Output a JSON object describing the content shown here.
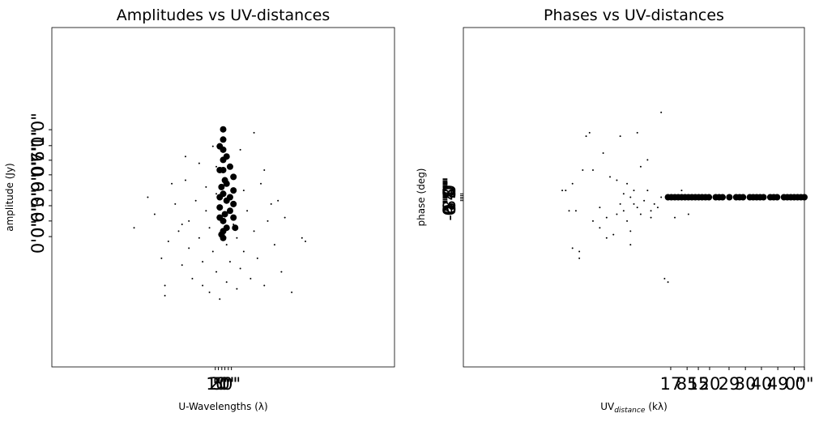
{
  "chart_data": [
    {
      "type": "scatter",
      "title": "Amplitudes vs UV-distances",
      "xlabel": "U-Wavelengths (λ)",
      "ylabel": "amplitude (Jy)",
      "xlim": [
        -50,
        50
      ],
      "ylim": [
        -50,
        50
      ],
      "xticks": [
        {
          "value": -2.3,
          "label": "1\""
        },
        {
          "value": -1.4,
          "label": "2\""
        },
        {
          "value": -0.4,
          "label": "5\""
        },
        {
          "value": 0.5,
          "label": "0\""
        },
        {
          "value": 1.5,
          "label": "0\""
        },
        {
          "value": 2.4,
          "label": "0\""
        }
      ],
      "yticks": [
        {
          "value": 19.9,
          "label": "1'0\""
        },
        {
          "value": 15.2,
          "label": "7'0\""
        },
        {
          "value": 10.9,
          "label": "0'6\""
        },
        {
          "value": 6.6,
          "label": "9'0\""
        },
        {
          "value": 2.0,
          "label": "3'0\""
        },
        {
          "value": -2.5,
          "label": "6'0\""
        },
        {
          "value": -7.0,
          "label": "0'0\""
        },
        {
          "value": -11.6,
          "label": "0'0\""
        }
      ],
      "series": [
        {
          "color": "#000000",
          "size": 1,
          "x": [
            -26,
            -22,
            -20,
            -18,
            -17,
            -17,
            -16,
            -15,
            -14,
            -13,
            -12,
            -11,
            -10,
            -10,
            -9,
            -8,
            -7,
            -7,
            -6,
            -5,
            -5,
            -4,
            -4,
            -3,
            -3,
            -2,
            -2,
            -1,
            -1,
            1,
            1,
            2,
            3,
            4,
            4,
            5,
            6,
            6,
            7,
            8,
            9,
            9,
            10,
            11,
            12,
            12,
            13,
            14,
            15,
            16,
            17,
            18,
            20,
            23,
            24,
            -11,
            -12,
            -6,
            5,
            -2
          ],
          "values": [
            -9,
            0,
            -5,
            -18,
            -26,
            -29,
            -13,
            4,
            -2,
            -10,
            -20,
            5,
            -15,
            -7,
            -24,
            -1,
            10,
            -12,
            -19,
            -4,
            3,
            -28,
            -9,
            15,
            -16,
            1,
            -22,
            -6,
            -30,
            -14,
            -25,
            -19,
            -8,
            -27,
            -12,
            -21,
            2,
            -16,
            -4,
            -24,
            19,
            -10,
            -18,
            4,
            8,
            -26,
            -7,
            -2,
            -14,
            -1,
            -22,
            -6,
            -28,
            -12,
            -13,
            12,
            -8,
            -26,
            14,
            9
          ]
        },
        {
          "color": "#000000",
          "size": 4,
          "x": [
            0,
            0,
            0,
            0,
            0,
            0.5,
            -0.5,
            0,
            1,
            -1,
            0.5,
            0,
            1,
            -0.5,
            3,
            3,
            3,
            3,
            2,
            -1,
            1,
            -1,
            2,
            -1,
            0,
            1,
            2,
            -1,
            3.5,
            0
          ],
          "values": [
            20,
            17,
            14,
            11,
            8,
            5,
            3,
            1,
            -1,
            -3,
            -5,
            -7,
            -9,
            -11,
            6,
            2,
            -2,
            -6,
            9,
            8,
            12,
            0,
            -4,
            -6,
            -12,
            4,
            0,
            15,
            -9,
            -10
          ]
        }
      ]
    },
    {
      "type": "scatter",
      "title": "Phases vs UV-distances",
      "xlabel": {
        "text": "UV",
        "sub": "distance",
        "unit": "(kλ)"
      },
      "ylabel": "phase (deg)",
      "xlim": [
        -50,
        50
      ],
      "ylim": [
        -50,
        50
      ],
      "xticks": [
        {
          "value": 10.8,
          "label": "17"
        },
        {
          "value": 15.6,
          "label": "85"
        },
        {
          "value": 18.9,
          "label": "15"
        },
        {
          "value": 22.2,
          "label": "20"
        },
        {
          "value": 27.9,
          "label": "29"
        },
        {
          "value": 32.7,
          "label": "30"
        },
        {
          "value": 37.4,
          "label": "40"
        },
        {
          "value": 42.2,
          "label": "49"
        },
        {
          "value": 47,
          "label": "0\""
        },
        {
          "value": 50,
          "label": "0\""
        }
      ],
      "yticks": [
        {
          "value": -1,
          "label": "-0'5\""
        },
        {
          "value": -0.5,
          "label": "0'4\""
        },
        {
          "value": 0,
          "label": "4'8\""
        },
        {
          "value": 0.5,
          "label": "5'0\""
        },
        {
          "value": 1,
          "label": "8'0\""
        }
      ],
      "series": [
        {
          "color": "#000000",
          "size": 1,
          "x": [
            -21,
            -20,
            -19,
            -18,
            -18,
            -16,
            -17,
            -15,
            -14,
            -13,
            -12,
            -12,
            -10,
            -10,
            -9,
            -8,
            -8,
            -7,
            -6,
            -5,
            -5,
            -4,
            -4,
            -3,
            -3,
            -2,
            -2,
            -1,
            -1,
            0,
            0,
            1,
            1,
            2,
            2,
            3,
            4,
            4,
            5,
            5,
            6,
            7,
            8,
            9,
            10,
            8,
            12,
            14,
            16,
            -16,
            -1
          ],
          "values": [
            2,
            2,
            -4,
            4,
            -15,
            -16,
            -4,
            8,
            18,
            19,
            -7,
            8,
            -3,
            -9,
            13,
            -6,
            -12,
            6,
            -11,
            5,
            -5,
            -2,
            18,
            1,
            -4,
            4,
            -7,
            0,
            -10,
            2,
            -2,
            -3,
            19,
            -5,
            9,
            -1,
            2,
            11,
            -4,
            -6,
            -2,
            -3,
            25,
            -24,
            -25,
            0,
            -6,
            2,
            -5,
            -18,
            -14
          ]
        },
        {
          "color": "#000000",
          "size": 4,
          "x": [
            10,
            11,
            12,
            13,
            14,
            15,
            16,
            17,
            18,
            19,
            20,
            21,
            22,
            24,
            25,
            26,
            28,
            30,
            31,
            32,
            34,
            35,
            36,
            37,
            38,
            40,
            41,
            42,
            44,
            45,
            46,
            47,
            48,
            49,
            50
          ],
          "values": [
            0,
            0,
            0,
            0,
            0,
            0,
            0,
            0,
            0,
            0,
            0,
            0,
            0,
            0,
            0,
            0,
            0,
            0,
            0,
            0,
            0,
            0,
            0,
            0,
            0,
            0,
            0,
            0,
            0,
            0,
            0,
            0,
            0,
            0,
            0
          ]
        }
      ]
    }
  ]
}
